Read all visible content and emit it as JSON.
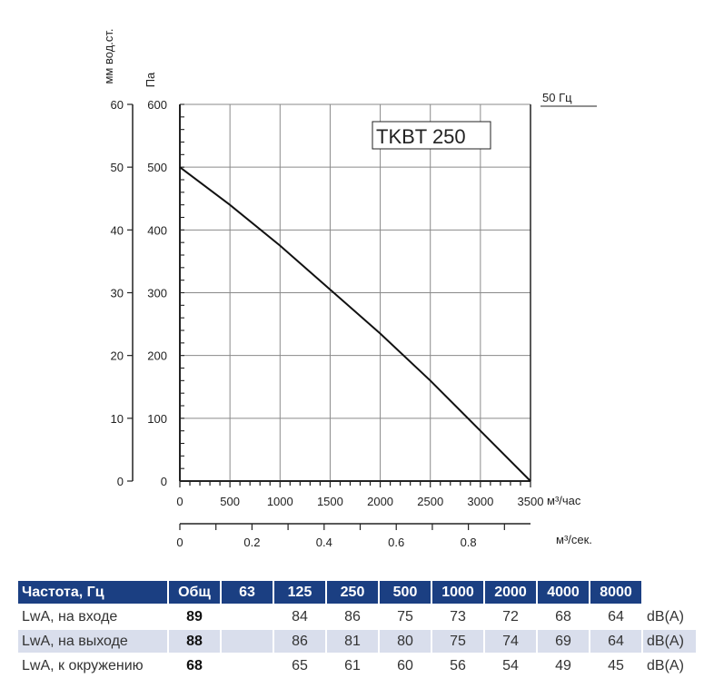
{
  "chart_data": {
    "type": "line",
    "model_label": "TKBT 250",
    "frequency_label": "50 Гц",
    "y_left_label": "мм вод.ст.",
    "y_right_label": "Па",
    "x_unit_label": "м³/час",
    "x2_unit_label": "м³/сек.",
    "xlim": [
      0,
      3500
    ],
    "ylim": [
      0,
      600
    ],
    "y2lim": [
      0,
      60
    ],
    "x_ticks": [
      "0",
      "500",
      "1000",
      "1500",
      "2000",
      "2500",
      "3000",
      "3500"
    ],
    "x2_ticks": [
      "0",
      "0.2",
      "0.4",
      "0.6",
      "0.8"
    ],
    "y_ticks": [
      "0",
      "100",
      "200",
      "300",
      "400",
      "500",
      "600"
    ],
    "y2_ticks": [
      "0",
      "10",
      "20",
      "30",
      "40",
      "50",
      "60"
    ],
    "grid": true,
    "series": [
      {
        "x": [
          0,
          500,
          1000,
          1500,
          2000,
          2500,
          3000,
          3500
        ],
        "y": [
          500,
          440,
          375,
          305,
          235,
          160,
          80,
          0
        ]
      }
    ]
  },
  "noise_table": {
    "headers": [
      "Частота, Гц",
      "Общ",
      "63",
      "125",
      "250",
      "500",
      "1000",
      "2000",
      "4000",
      "8000"
    ],
    "rows": [
      {
        "label": "LwA, на входе",
        "total": "89",
        "values": [
          "",
          "84",
          "86",
          "75",
          "73",
          "72",
          "68",
          "64"
        ],
        "unit": "dB(A)"
      },
      {
        "label": "LwA, на выходе",
        "total": "88",
        "values": [
          "",
          "86",
          "81",
          "80",
          "75",
          "74",
          "69",
          "64"
        ],
        "unit": "dB(A)"
      },
      {
        "label": "LwA, к окружению",
        "total": "68",
        "values": [
          "",
          "65",
          "61",
          "60",
          "56",
          "54",
          "49",
          "45"
        ],
        "unit": "dB(A)"
      }
    ]
  }
}
